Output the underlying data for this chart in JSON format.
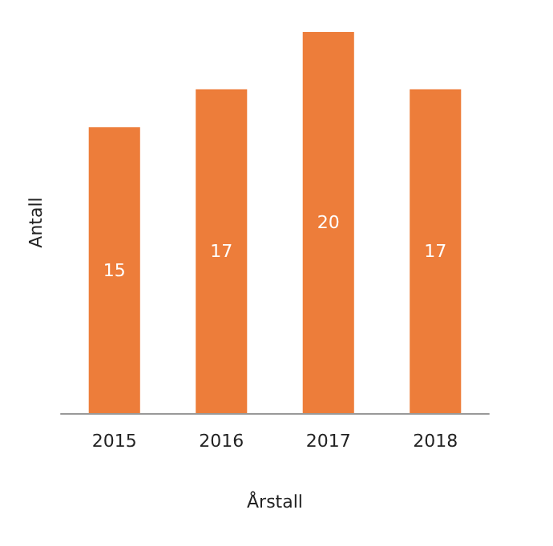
{
  "chart_data": {
    "type": "bar",
    "xlabel": "Årstall",
    "ylabel": "Antall",
    "categories": [
      "2015",
      "2016",
      "2017",
      "2018"
    ],
    "values": [
      15,
      17,
      20,
      17
    ],
    "color": "#ed7d3a",
    "data_labels": true
  }
}
